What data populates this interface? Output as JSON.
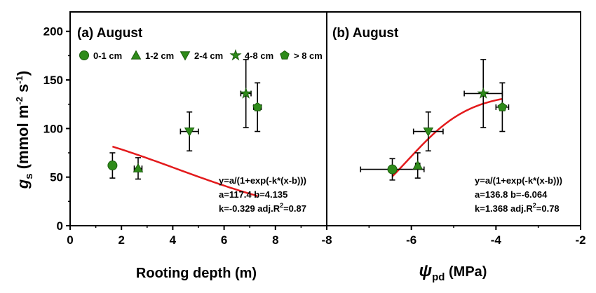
{
  "colors": {
    "marker": "#2e8b1a",
    "marker_stroke": "#1a5c0c",
    "fit": "#e31a1c",
    "error": "#000000"
  },
  "y_axis_label": {
    "main": "g",
    "sub": "s",
    "unit_prefix": " (mmol m",
    "exp1": "-2",
    "unit_mid": " s",
    "exp2": "-1",
    "unit_suffix": ")"
  },
  "legend": [
    {
      "label": "0-1 cm",
      "marker": "circle"
    },
    {
      "label": "1-2 cm",
      "marker": "triangle-up"
    },
    {
      "label": "2-4 cm",
      "marker": "triangle-down"
    },
    {
      "label": "4-8 cm",
      "marker": "star"
    },
    {
      "label": "> 8 cm",
      "marker": "pentagon"
    }
  ],
  "chart_data": [
    {
      "type": "scatter",
      "title": "(a) August",
      "xlabel": "Rooting depth (m)",
      "ylabel": "",
      "xlim": [
        0,
        10
      ],
      "ylim": [
        0,
        220
      ],
      "xticks": [
        0,
        2,
        4,
        6,
        8
      ],
      "yticks": [
        0,
        50,
        100,
        150,
        200
      ],
      "grid": false,
      "legend_position": "top",
      "points": [
        {
          "series": "0-1 cm",
          "marker": "circle",
          "x": 1.65,
          "y": 62,
          "xerr": 0,
          "yerr": 13
        },
        {
          "series": "1-2 cm",
          "marker": "triangle-up",
          "x": 2.65,
          "y": 59,
          "xerr": 0.15,
          "yerr": 11
        },
        {
          "series": "2-4 cm",
          "marker": "triangle-down",
          "x": 4.65,
          "y": 97,
          "xerr": 0.35,
          "yerr": 20
        },
        {
          "series": "4-8 cm",
          "marker": "star",
          "x": 6.85,
          "y": 136,
          "xerr": 0.2,
          "yerr": 35
        },
        {
          "series": "> 8 cm",
          "marker": "pentagon",
          "x": 7.3,
          "y": 122,
          "xerr": 0.15,
          "yerr": 25
        }
      ],
      "fit": {
        "a": 117.4,
        "b": 4.135,
        "k": -0.329,
        "x_range": [
          1.65,
          7.3
        ]
      },
      "annotation": [
        "y=a/(1+exp(-k*(x-b)))",
        "a=117.4 b=4.135",
        "k=-0.329 adj.R",
        "2",
        "=0.87"
      ]
    },
    {
      "type": "scatter",
      "title": "(b) August",
      "xlabel_main": "ψ",
      "xlabel_sub": "pd",
      "xlabel_unit": " (MPa)",
      "xlim": [
        -8,
        -2
      ],
      "ylim": [
        0,
        220
      ],
      "xticks": [
        -8,
        -6,
        -4,
        -2
      ],
      "grid": false,
      "points": [
        {
          "series": "0-1 cm",
          "marker": "circle",
          "x": -6.45,
          "y": 58,
          "xerr": 0.75,
          "yerr": 11
        },
        {
          "series": "1-2 cm",
          "marker": "triangle-up",
          "x": -5.85,
          "y": 62,
          "xerr": 0.05,
          "yerr": 13
        },
        {
          "series": "2-4 cm",
          "marker": "triangle-down",
          "x": -5.6,
          "y": 97,
          "xerr": 0.35,
          "yerr": 20
        },
        {
          "series": "4-8 cm",
          "marker": "star",
          "x": -4.3,
          "y": 136,
          "xerr": 0.45,
          "yerr": 35
        },
        {
          "series": "> 8 cm",
          "marker": "pentagon",
          "x": -3.85,
          "y": 122,
          "xerr": 0.15,
          "yerr": 25
        }
      ],
      "fit": {
        "a": 136.8,
        "b": -6.064,
        "k": 1.368,
        "x_range": [
          -6.45,
          -3.85
        ]
      },
      "annotation": [
        "y=a/(1+exp(-k*(x-b)))",
        "a=136.8 b=-6.064",
        "k=1.368 adj.R",
        "2",
        "=0.78"
      ]
    }
  ]
}
